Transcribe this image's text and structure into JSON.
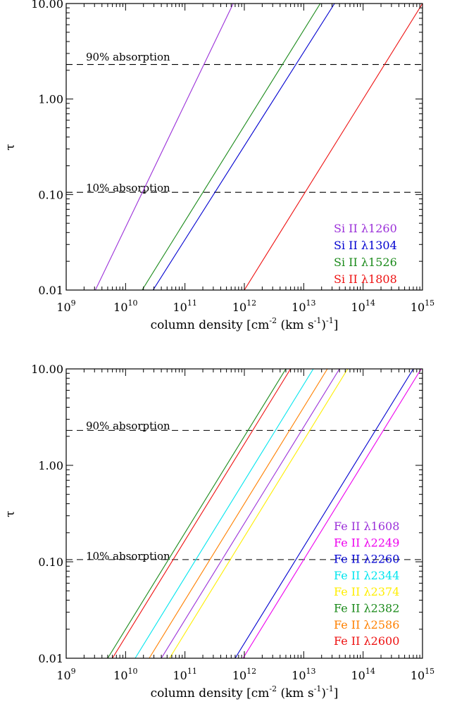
{
  "chart_data": [
    {
      "type": "line",
      "x_scale": "log",
      "y_scale": "log",
      "xlim": [
        1000000000.0,
        1000000000000000.0
      ],
      "ylim": [
        0.01,
        10
      ],
      "xlabel_main": "column density [cm",
      "xlabel_sup1": "-2",
      "xlabel_mid": " (km s",
      "xlabel_sup2": "-1",
      "xlabel_end": ")",
      "xlabel_sup3": "-1",
      "xlabel_close": "]",
      "ylabel": "τ",
      "x_ticks": [
        {
          "base": "10",
          "exp": "9",
          "value": 1000000000.0
        },
        {
          "base": "10",
          "exp": "10",
          "value": 10000000000.0
        },
        {
          "base": "10",
          "exp": "11",
          "value": 100000000000.0
        },
        {
          "base": "10",
          "exp": "12",
          "value": 1000000000000.0
        },
        {
          "base": "10",
          "exp": "13",
          "value": 10000000000000.0
        },
        {
          "base": "10",
          "exp": "14",
          "value": 100000000000000.0
        },
        {
          "base": "10",
          "exp": "15",
          "value": 1000000000000000.0
        }
      ],
      "y_ticks": [
        {
          "label": "0.01",
          "value": 0.01
        },
        {
          "label": "0.10",
          "value": 0.1
        },
        {
          "label": "1.00",
          "value": 1
        },
        {
          "label": "10.00",
          "value": 10
        }
      ],
      "reference_lines": [
        {
          "label": "90% absorption",
          "y": 2.303
        },
        {
          "label": "10% absorption",
          "y": 0.1054
        }
      ],
      "series": [
        {
          "name": "Si II λ1260",
          "color": "#9b30d9",
          "x": [
            3100000000.0,
            650000000000.0
          ],
          "y": [
            0.01,
            10
          ]
        },
        {
          "name": "Si II λ1304",
          "color": "#0000d0",
          "x": [
            29000000000.0,
            33000000000000.0
          ],
          "y": [
            0.01,
            10
          ]
        },
        {
          "name": "Si II λ1526",
          "color": "#1a8a1a",
          "x": [
            19000000000.0,
            19000000000000.0
          ],
          "y": [
            0.01,
            10
          ]
        },
        {
          "name": "Si II λ1808",
          "color": "#ee1111",
          "x": [
            1000000000000.0,
            1000000000000000.0
          ],
          "y": [
            0.01,
            10
          ]
        }
      ]
    },
    {
      "type": "line",
      "x_scale": "log",
      "y_scale": "log",
      "xlim": [
        1000000000.0,
        1000000000000000.0
      ],
      "ylim": [
        0.01,
        10
      ],
      "xlabel_main": "column density [cm",
      "xlabel_sup1": "-2",
      "xlabel_mid": " (km s",
      "xlabel_sup2": "-1",
      "xlabel_end": ")",
      "xlabel_sup3": "-1",
      "xlabel_close": "]",
      "ylabel": "τ",
      "x_ticks": [
        {
          "base": "10",
          "exp": "9",
          "value": 1000000000.0
        },
        {
          "base": "10",
          "exp": "10",
          "value": 10000000000.0
        },
        {
          "base": "10",
          "exp": "11",
          "value": 100000000000.0
        },
        {
          "base": "10",
          "exp": "12",
          "value": 1000000000000.0
        },
        {
          "base": "10",
          "exp": "13",
          "value": 10000000000000.0
        },
        {
          "base": "10",
          "exp": "14",
          "value": 100000000000000.0
        },
        {
          "base": "10",
          "exp": "15",
          "value": 1000000000000000.0
        }
      ],
      "y_ticks": [
        {
          "label": "0.01",
          "value": 0.01
        },
        {
          "label": "0.10",
          "value": 0.1
        },
        {
          "label": "1.00",
          "value": 1
        },
        {
          "label": "10.00",
          "value": 10
        }
      ],
      "reference_lines": [
        {
          "label": "90% absorption",
          "y": 2.303
        },
        {
          "label": "10% absorption",
          "y": 0.1054
        }
      ],
      "series": [
        {
          "name": "Fe II λ1608",
          "color": "#9b30d9",
          "x": [
            40000000000.0,
            40000000000000.0
          ],
          "y": [
            0.01,
            10
          ]
        },
        {
          "name": "Fe II λ2249",
          "color": "#ee00ee",
          "x": [
            950000000000.0,
            950000000000000.0
          ],
          "y": [
            0.01,
            10
          ]
        },
        {
          "name": "Fe II λ2260",
          "color": "#0000d0",
          "x": [
            700000000000.0,
            700000000000000.0
          ],
          "y": [
            0.01,
            10
          ]
        },
        {
          "name": "Fe II λ2344",
          "color": "#00e5ee",
          "x": [
            14500000000.0,
            14500000000000.0
          ],
          "y": [
            0.01,
            10
          ]
        },
        {
          "name": "Fe II λ2374",
          "color": "#ffee00",
          "x": [
            55000000000.0,
            55000000000000.0
          ],
          "y": [
            0.01,
            10
          ]
        },
        {
          "name": "Fe II λ2382",
          "color": "#1a8a1a",
          "x": [
            5000000000.0,
            5000000000000.0
          ],
          "y": [
            0.01,
            10
          ]
        },
        {
          "name": "Fe II λ2586",
          "color": "#ff8000",
          "x": [
            25000000000.0,
            25000000000000.0
          ],
          "y": [
            0.01,
            10
          ]
        },
        {
          "name": "Fe II λ2600",
          "color": "#ee1111",
          "x": [
            6000000000.0,
            6000000000000.0
          ],
          "y": [
            0.01,
            10
          ]
        }
      ]
    }
  ]
}
